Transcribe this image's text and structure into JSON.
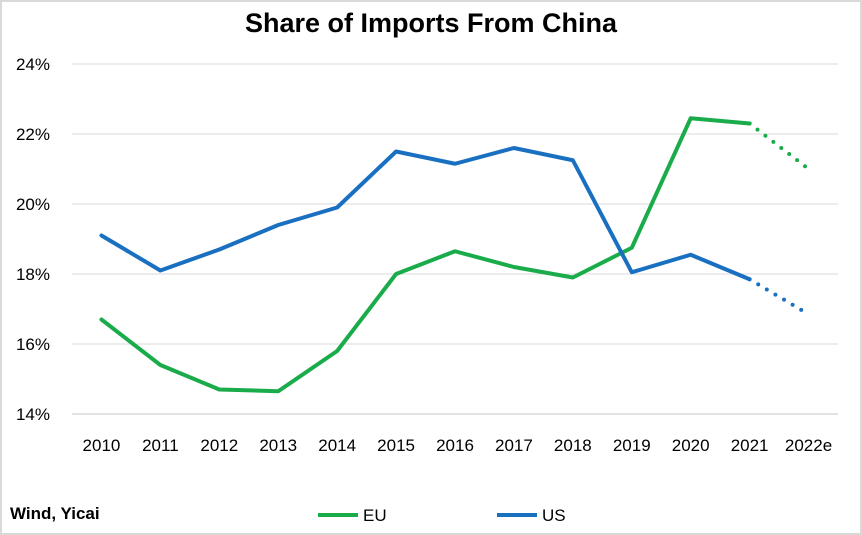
{
  "chart_data": {
    "type": "line",
    "title": "Share of Imports From China",
    "categories": [
      "2010",
      "2011",
      "2012",
      "2013",
      "2014",
      "2015",
      "2016",
      "2017",
      "2018",
      "2019",
      "2020",
      "2021",
      "2022e"
    ],
    "ylim": [
      14,
      24
    ],
    "yticks": [
      14,
      16,
      18,
      20,
      22,
      24
    ],
    "ytick_suffix": "%",
    "grid": true,
    "legend_position": "bottom-center",
    "series": [
      {
        "name": "EU",
        "color": "#1aab4b",
        "values": [
          16.7,
          15.4,
          14.7,
          14.65,
          15.8,
          18.0,
          18.65,
          18.2,
          17.9,
          18.75,
          22.45,
          22.3,
          21.0
        ],
        "forecast_from_index": 11
      },
      {
        "name": "US",
        "color": "#1a70c0",
        "values": [
          19.1,
          18.1,
          18.7,
          19.4,
          19.9,
          21.5,
          21.15,
          21.6,
          21.25,
          18.05,
          18.55,
          17.85,
          16.85
        ],
        "forecast_from_index": 11
      }
    ],
    "source": "Wind, Yicai"
  }
}
